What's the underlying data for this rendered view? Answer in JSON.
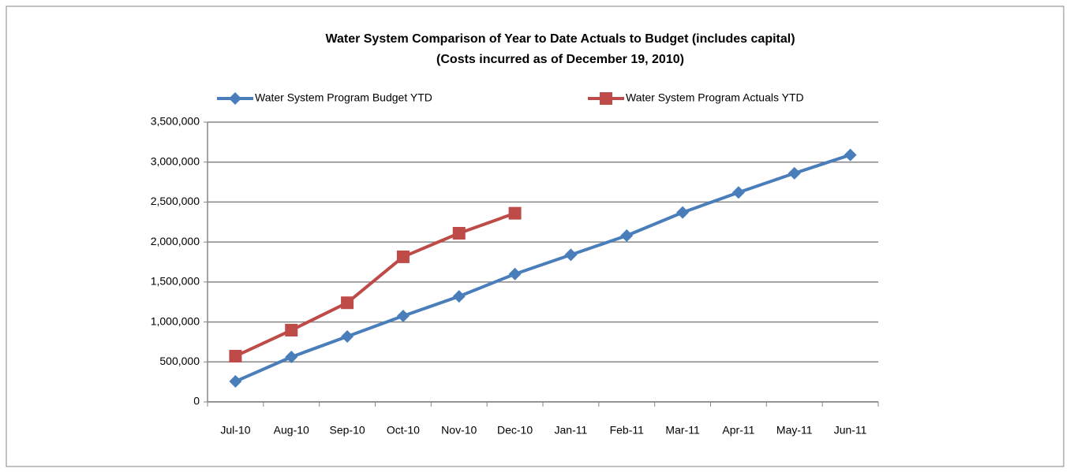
{
  "chart_data": {
    "type": "line",
    "title": "Water System Comparison of Year to Date Actuals to Budget (includes capital)",
    "subtitle": "(Costs incurred as of December 19, 2010)",
    "categories": [
      "Jul-10",
      "Aug-10",
      "Sep-10",
      "Oct-10",
      "Nov-10",
      "Dec-10",
      "Jan-11",
      "Feb-11",
      "Mar-11",
      "Apr-11",
      "May-11",
      "Jun-11"
    ],
    "series": [
      {
        "name": "Water System Program Budget YTD",
        "color": "#4a7ebb",
        "marker": "diamond",
        "values": [
          256000,
          562000,
          818000,
          1075000,
          1320000,
          1600000,
          1840000,
          2080000,
          2370000,
          2620000,
          2860000,
          3090000
        ]
      },
      {
        "name": "Water System Program Actuals YTD",
        "color": "#be4b48",
        "marker": "square",
        "values": [
          572000,
          897000,
          1240000,
          1815000,
          2110000,
          2360000,
          null,
          null,
          null,
          null,
          null,
          null
        ]
      }
    ],
    "ylim": [
      0,
      3500000
    ],
    "yticks": [
      0,
      {
        "value": 500000,
        "label": "500,000"
      },
      {
        "value": 1000000,
        "label": "1,000,000"
      },
      {
        "value": 1500000,
        "label": "1,500,000"
      },
      {
        "value": 2000000,
        "label": "2,000,000"
      },
      {
        "value": 2500000,
        "label": "2,500,000"
      },
      {
        "value": 3000000,
        "label": "3,000,000"
      },
      {
        "value": 3500000,
        "label": "3,500,000"
      }
    ],
    "grid": true,
    "legend": "top"
  }
}
